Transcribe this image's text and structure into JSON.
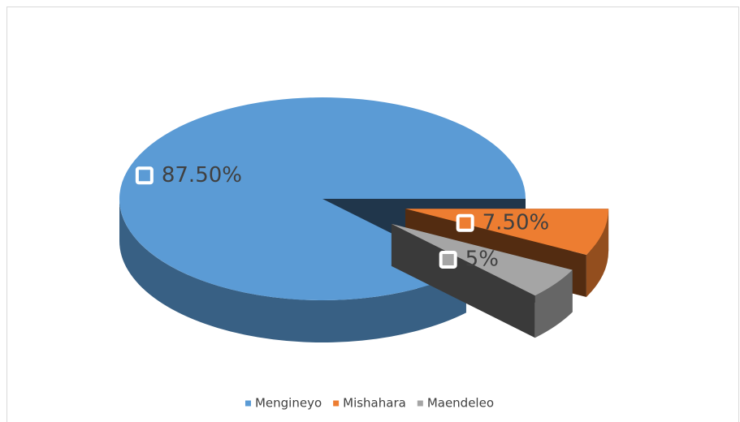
{
  "chart_data": {
    "type": "pie",
    "pie_3d": true,
    "categories": [
      "Mengineyo",
      "Mishahara",
      "Maendeleo"
    ],
    "values": [
      87.5,
      7.5,
      5
    ],
    "value_labels": [
      "87.50%",
      "7.50%",
      "5%"
    ],
    "colors": [
      "#5b9bd5",
      "#ed7d31",
      "#a5a5a5"
    ],
    "legend": "bottom"
  }
}
